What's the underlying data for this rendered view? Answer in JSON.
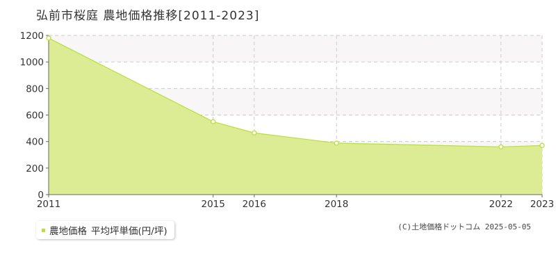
{
  "title": "弘前市桜庭 農地価格推移[2011-2023]",
  "legend": {
    "series_name": "農地価格",
    "measure": "平均坪単価(円/坪)"
  },
  "copyright": "(C)土地価格ドットコム 2025-05-05",
  "colors": {
    "line": "#b8e03a",
    "fill": "#dcec95",
    "marker_fill": "#ffffff",
    "band": "#f8f6f6",
    "grid": "#cccccc",
    "axis": "#666666",
    "legend_marker": "#b8e03a"
  },
  "chart_data": {
    "type": "area",
    "x": [
      2011,
      2015,
      2016,
      2018,
      2022,
      2023
    ],
    "x_tick_labels": [
      "2011",
      "2015",
      "2016",
      "2018",
      "2022",
      "2023"
    ],
    "series": [
      {
        "name": "農地価格 平均坪単価(円/坪)",
        "values": [
          1180,
          550,
          465,
          388,
          360,
          370
        ]
      }
    ],
    "xlim": [
      2011,
      2023
    ],
    "ylim": [
      0,
      1200
    ],
    "y_ticks": [
      0,
      200,
      400,
      600,
      800,
      1000,
      1200
    ],
    "grid": true,
    "legend_position": "bottom-left"
  }
}
